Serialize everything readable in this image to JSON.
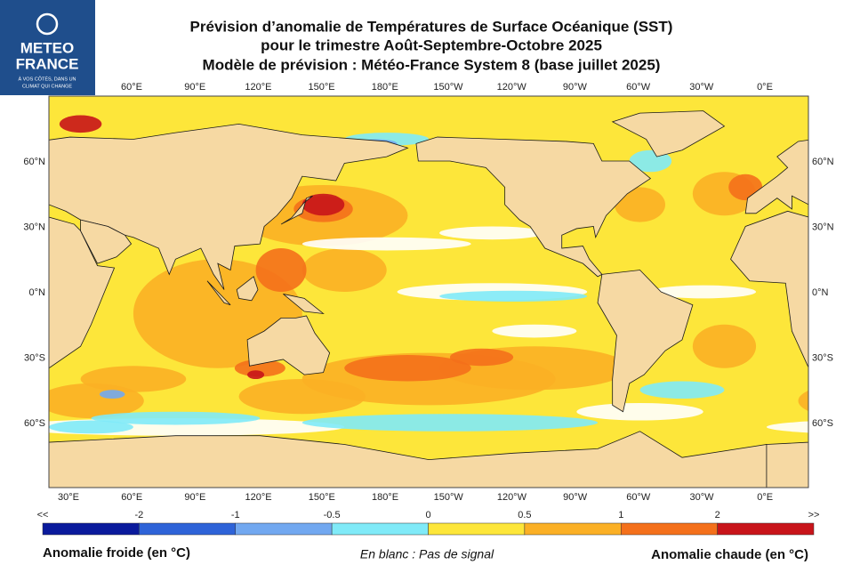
{
  "logo": {
    "name_line1": "METEO",
    "name_line2": "FRANCE",
    "slogan_lines": [
      "À VOS CÔTÉS, DANS UN",
      "CLIMAT QUI CHANGE"
    ]
  },
  "header": {
    "title_lines": [
      "Prévision d’anomalie de Températures de Surface Océanique (SST)",
      "pour le trimestre Août-Septembre-Octobre 2025",
      "Modèle de prévision : Météo-France System 8 (base juillet 2025)"
    ]
  },
  "map": {
    "top_longitude_labels": [
      "60°E",
      "90°E",
      "120°E",
      "150°E",
      "180°E",
      "150°W",
      "120°W",
      "90°W",
      "60°W",
      "30°W",
      "0°E"
    ],
    "bottom_longitude_labels": [
      "30°E",
      "60°E",
      "90°E",
      "120°E",
      "150°E",
      "180°E",
      "150°W",
      "120°W",
      "90°W",
      "60°W",
      "30°W",
      "0°E"
    ],
    "left_latitude_labels": [
      "60°N",
      "30°N",
      "0°N",
      "30°S",
      "60°S"
    ],
    "right_latitude_labels": [
      "60°N",
      "30°N",
      "0°N",
      "30°S",
      "60°S"
    ]
  },
  "colorbar": {
    "tick_labels": [
      "<<",
      "-2",
      "-1",
      "-0.5",
      "0",
      "0.5",
      "1",
      "2",
      ">>"
    ],
    "colors": [
      "#0a1a9c",
      "#2e63d8",
      "#72a8f0",
      "#80eaf8",
      "#fde63a",
      "#fbb025",
      "#f4701b",
      "#c8141a"
    ]
  },
  "footer": {
    "cold_label": "Anomalie froide (en °C)",
    "note": "En blanc : Pas de signal",
    "warm_label": "Anomalie chaude (en °C)"
  }
}
